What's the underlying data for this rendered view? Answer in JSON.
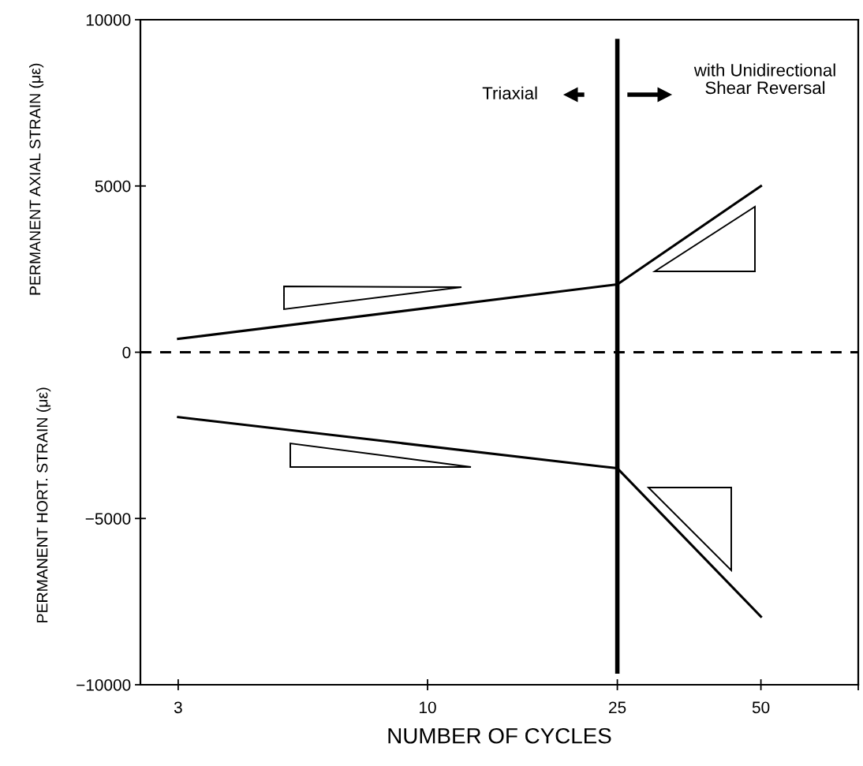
{
  "chart_data": {
    "type": "line",
    "xlabel": "NUMBER OF CYCLES",
    "ylabel": "PERMANENT AXIAL STRAIN (με)",
    "log": "x",
    "xlim": [
      2.5,
      80
    ],
    "xticks": [
      3,
      10,
      25,
      50,
      {
        "value": 80,
        "label": null
      }
    ],
    "ylim": [
      -10000,
      10000
    ],
    "yticks": [
      {
        "value": -10000,
        "label": "−10000"
      },
      {
        "value": -5000,
        "label": "−5000"
      },
      0,
      5000,
      10000
    ],
    "x": [
      3,
      25,
      50
    ],
    "series": [
      {
        "color": "#000000",
        "values": [
          400,
          2040,
          5000
        ]
      },
      {
        "color": "#000000",
        "values": [
          -1950,
          -3490,
          -7950
        ]
      }
    ],
    "ref_lines": [
      {
        "axis": "y",
        "value": 0,
        "line_style": "dashed",
        "color": "#000000"
      },
      {
        "axis": "x",
        "value": 25,
        "line_style": "solid",
        "color": "#000000"
      }
    ],
    "annotations": [
      "PERMANENT HORT. STRAIN (με)",
      "Triaxial",
      "with Unidirectional\nShear Reversal"
    ],
    "grid": false,
    "marker": "none",
    "line_style": "solid"
  }
}
